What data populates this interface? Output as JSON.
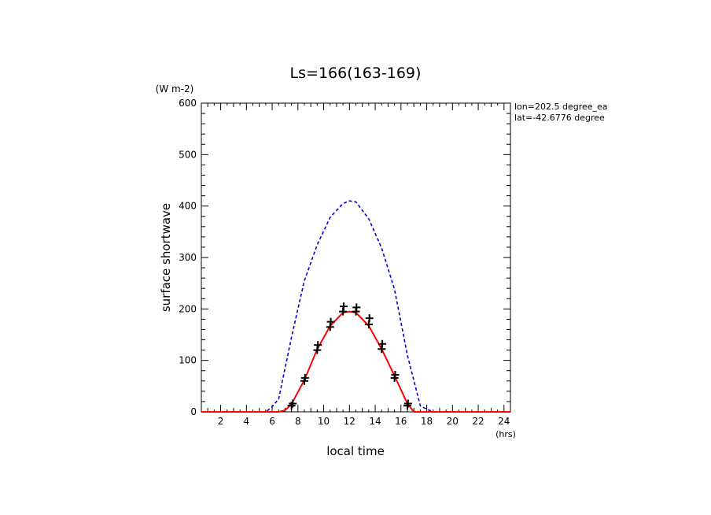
{
  "chart_data": {
    "type": "line",
    "title": "Ls=166(163-169)",
    "ylabel": "surface shortwave",
    "yunit": "(W m-2)",
    "xlabel": "local time",
    "xunit": "(hrs)",
    "annotations": [
      "lon=202.5 degree_ea",
      "lat=-42.6776 degree"
    ],
    "xlim": [
      0.5,
      24.5
    ],
    "ylim": [
      0,
      600
    ],
    "xticks": [
      2,
      4,
      6,
      8,
      10,
      12,
      14,
      16,
      18,
      20,
      22,
      24
    ],
    "yticks": [
      0,
      100,
      200,
      300,
      400,
      500,
      600
    ],
    "grid": false,
    "series": [
      {
        "style": "dashed-line",
        "color": "#0000cc",
        "x": [
          0.5,
          1.5,
          2.5,
          3.5,
          4.5,
          5.5,
          6.0,
          6.5,
          7.5,
          8.5,
          9.5,
          10.5,
          11.5,
          12.0,
          12.5,
          13.5,
          14.5,
          15.5,
          16.5,
          17.5,
          18.0,
          18.5,
          19.5,
          20.5,
          21.5,
          22.5,
          23.5,
          24.5
        ],
        "y": [
          0,
          0,
          0,
          0,
          0,
          0,
          10,
          25,
          145,
          255,
          325,
          378,
          405,
          410,
          408,
          375,
          318,
          238,
          110,
          12,
          5,
          0,
          0,
          0,
          0,
          0,
          0,
          0
        ]
      },
      {
        "style": "solid-line",
        "color": "#ff0000",
        "x": [
          0.5,
          1.5,
          2.5,
          3.5,
          4.5,
          5.5,
          6.5,
          7.0,
          7.5,
          8.5,
          9.5,
          10.5,
          11.5,
          12.0,
          12.5,
          13.5,
          14.5,
          15.5,
          16.5,
          17.0,
          17.5,
          18.5,
          19.5,
          20.5,
          21.5,
          22.5,
          23.5,
          24.5
        ],
        "y": [
          0,
          0,
          0,
          0,
          0,
          0,
          0,
          3,
          15,
          62,
          122,
          167,
          193,
          195,
          193,
          167,
          122,
          70,
          16,
          0,
          0,
          0,
          0,
          0,
          0,
          0,
          0,
          0
        ]
      },
      {
        "style": "plus-markers",
        "color": "#000000",
        "x": [
          7.5,
          7.6,
          8.5,
          8.55,
          9.5,
          9.55,
          10.5,
          10.55,
          11.5,
          11.55,
          12.5,
          12.55,
          13.5,
          13.55,
          14.5,
          14.55,
          15.5,
          15.55,
          16.5,
          16.55
        ],
        "y": [
          12,
          16,
          60,
          66,
          120,
          130,
          165,
          175,
          195,
          205,
          195,
          203,
          170,
          182,
          122,
          132,
          66,
          72,
          12,
          16
        ]
      }
    ]
  }
}
